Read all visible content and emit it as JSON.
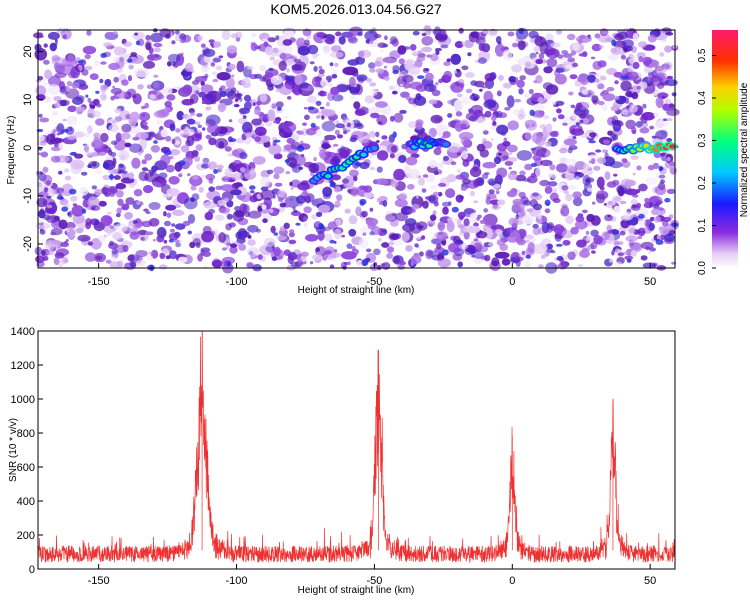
{
  "title": "KOM5.2026.013.04.56.G27",
  "chart_data": [
    {
      "type": "heatmap",
      "xlabel": "Height of straight line (km)",
      "ylabel": "Frequency (Hz)",
      "xlim": [
        -172,
        59
      ],
      "ylim": [
        -25,
        24.5
      ],
      "xticks": [
        -150,
        -100,
        -50,
        0,
        50
      ],
      "yticks": [
        -20,
        -10,
        0,
        10,
        20
      ],
      "colorbar": {
        "label": "Normalized spectral amplitude",
        "range": [
          0,
          0.56
        ],
        "ticks": [
          0.0,
          0.1,
          0.2,
          0.3,
          0.4,
          0.5
        ]
      },
      "features": [
        {
          "x_from": -72,
          "x_to": -50,
          "y_from": -7,
          "y_to": 0,
          "peak_amplitude": 0.3
        },
        {
          "x_from": -37,
          "x_to": -24,
          "y_from": 0.5,
          "y_to": 1.2,
          "peak_amplitude": 0.3
        },
        {
          "x_from": 38,
          "x_to": 58,
          "y_from": -0.6,
          "y_to": 0.3,
          "peak_amplitude": 0.55
        }
      ],
      "grid": false
    },
    {
      "type": "line",
      "xlabel": "Height of straight line (km)",
      "ylabel": "SNR (10 * v/v)",
      "xlim": [
        -172,
        59
      ],
      "ylim": [
        0,
        1400
      ],
      "xticks": [
        -150,
        -100,
        -50,
        0,
        50
      ],
      "yticks": [
        0,
        200,
        400,
        600,
        800,
        1000,
        1200,
        1400
      ],
      "color": "#ee3030",
      "baseline": 110,
      "peaks": [
        {
          "x": -112.5,
          "y": 1400,
          "width": 2.2
        },
        {
          "x": -48.5,
          "y": 1290,
          "width": 1.6
        },
        {
          "x": 0,
          "y": 780,
          "width": 1.2
        },
        {
          "x": 36.5,
          "y": 990,
          "width": 1.2
        }
      ],
      "grid": false
    }
  ]
}
